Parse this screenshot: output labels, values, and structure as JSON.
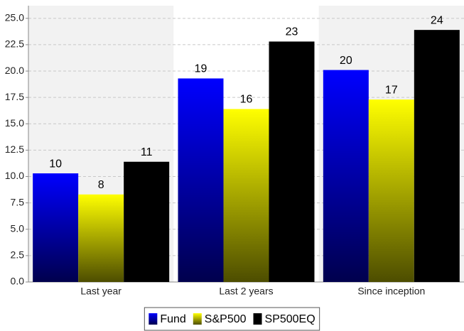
{
  "chart_data": {
    "type": "bar",
    "categories": [
      "Last year",
      "Last 2 years",
      "Since inception"
    ],
    "series": [
      {
        "name": "Fund",
        "color": "#0000ff",
        "values": [
          10.3,
          19.3,
          20.1
        ],
        "value_labels": [
          "10",
          "19",
          "20"
        ]
      },
      {
        "name": "S&P500",
        "color": "#ffff00",
        "values": [
          8.3,
          16.4,
          17.3
        ],
        "value_labels": [
          "8",
          "16",
          "17"
        ]
      },
      {
        "name": "SP500EQ",
        "color": "#000000",
        "values": [
          11.4,
          22.8,
          23.9
        ],
        "value_labels": [
          "11",
          "23",
          "24"
        ]
      }
    ],
    "ylim": [
      0,
      26.2
    ],
    "yticks": [
      {
        "value": 0,
        "label": "0.0"
      },
      2.5,
      {
        "value": 5,
        "label": "5.0"
      },
      7.5,
      {
        "value": 10,
        "label": "10.0"
      },
      12.5,
      {
        "value": 15,
        "label": "15.0"
      },
      17.5,
      {
        "value": 20,
        "label": "20.0"
      },
      22.5,
      {
        "value": 25,
        "label": "25.0"
      }
    ],
    "grid": true,
    "legend": "bottom"
  }
}
